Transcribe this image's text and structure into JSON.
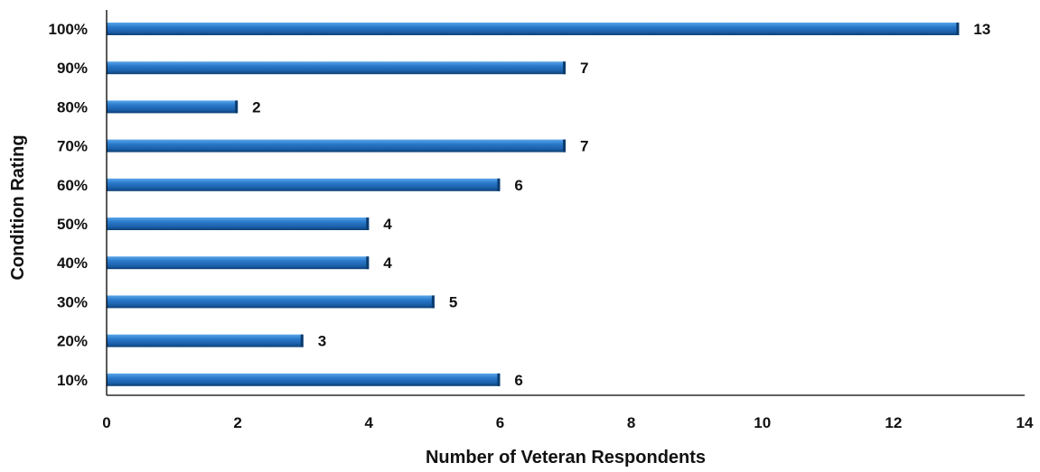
{
  "chart_data": {
    "type": "bar",
    "orientation": "horizontal",
    "title": "",
    "xlabel": "Number of Veteran Respondents",
    "ylabel": "Condition Rating",
    "categories": [
      "100%",
      "90%",
      "80%",
      "70%",
      "60%",
      "50%",
      "40%",
      "30%",
      "20%",
      "10%"
    ],
    "values": [
      13,
      7,
      2,
      7,
      6,
      4,
      4,
      5,
      3,
      6
    ],
    "xlim": [
      0,
      14
    ],
    "xticks": [
      "0",
      "2",
      "4",
      "6",
      "8",
      "10",
      "12",
      "14"
    ],
    "grid": false,
    "legend": "none",
    "colors": {
      "bar_main": "#1f6fc0",
      "bar_light": "#4a9be2",
      "bar_dark": "#0b3c6e",
      "axis": "#000000"
    }
  }
}
